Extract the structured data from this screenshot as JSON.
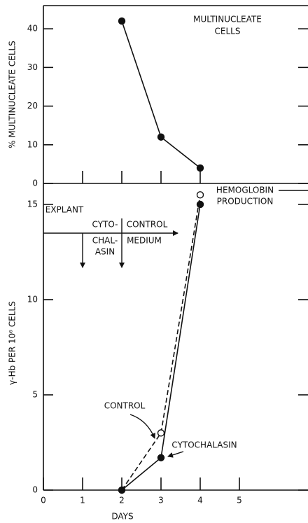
{
  "chart_data": [
    {
      "type": "line",
      "annotations": [
        "MULTINUCLEATE",
        "CELLS"
      ],
      "ylabel": "% MULTINUCLEATE CELLS",
      "x": [
        2,
        3,
        4
      ],
      "series": [
        {
          "values": [
            42,
            12,
            4
          ],
          "color": "#111111",
          "marker": "filled",
          "linestyle": "solid"
        }
      ],
      "xlim": [
        0,
        6.75
      ],
      "xticks": [
        1,
        2,
        3,
        4
      ],
      "xtick_labels": false,
      "ylim": [
        0,
        46
      ],
      "yticks": [
        0,
        10,
        20,
        30,
        40
      ]
    },
    {
      "type": "line",
      "annotations": [
        "HEMOGLOBIN",
        "PRODUCTION",
        "EXPLANT",
        "CYTO-",
        "CONTROL",
        "CHAL-",
        "ASIN",
        "MEDIUM"
      ],
      "ylabel": "γ-Hb PER 10⁶ CELLS",
      "xlabel": "DAYS",
      "x": [
        2,
        3,
        4
      ],
      "series": [
        {
          "name": "CONTROL",
          "values": [
            0,
            3,
            15.5
          ],
          "color": "#111111",
          "marker": "open",
          "linestyle": "dashed"
        },
        {
          "name": "CYTOCHALASIN",
          "values": [
            0,
            1.7,
            15
          ],
          "color": "#111111",
          "marker": "filled",
          "linestyle": "solid"
        }
      ],
      "xlim": [
        0,
        6.75
      ],
      "xticks": [
        0,
        1,
        2,
        3,
        4,
        5
      ],
      "xtick_labels": true,
      "ylim": [
        0,
        16.1
      ],
      "yticks": [
        0,
        5,
        10,
        15
      ]
    }
  ]
}
